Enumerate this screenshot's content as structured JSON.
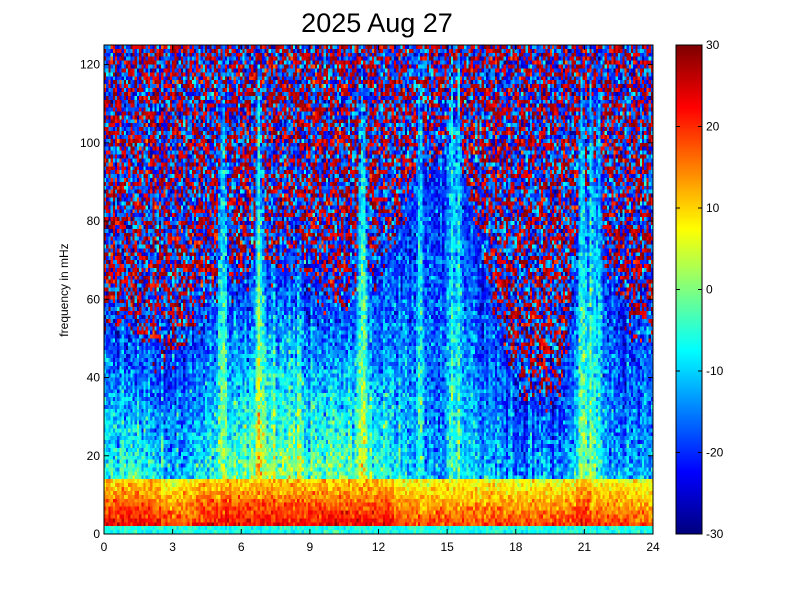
{
  "chart_data": {
    "type": "heatmap",
    "title": "2025 Aug 27",
    "xlabel": "",
    "ylabel": "frequency in mHz",
    "xlim": [
      0,
      24
    ],
    "ylim": [
      0,
      125
    ],
    "x_ticks": [
      0,
      3,
      6,
      9,
      12,
      15,
      18,
      21,
      24
    ],
    "x_tick_labels": [
      "0",
      "3",
      "6",
      "9",
      "12",
      "15",
      "18",
      "21",
      "24"
    ],
    "y_ticks": [
      0,
      20,
      40,
      60,
      80,
      100,
      120
    ],
    "y_tick_labels": [
      "0",
      "20",
      "40",
      "60",
      "80",
      "100",
      "120"
    ],
    "colorbar": {
      "limits": [
        -30,
        30
      ],
      "ticks": [
        -30,
        -20,
        -10,
        0,
        10,
        20,
        30
      ],
      "tick_labels": [
        "-30",
        "-20",
        "-10",
        "0",
        "10",
        "20",
        "30"
      ],
      "colormap": "jet"
    },
    "grid": false,
    "hours": [
      0,
      1,
      2,
      3,
      4,
      5,
      6,
      7,
      8,
      9,
      10,
      11,
      12,
      13,
      14,
      15,
      16,
      17,
      18,
      19,
      20,
      21,
      22,
      23,
      24
    ],
    "noise_edge_mHz": [
      55,
      55,
      48,
      45,
      55,
      63,
      66,
      68,
      70,
      66,
      62,
      60,
      70,
      80,
      95,
      100,
      85,
      60,
      40,
      35,
      38,
      90,
      70,
      55,
      50
    ],
    "broadband_level": [
      -2,
      0,
      -4,
      -8,
      -6,
      -2,
      2,
      4,
      5,
      4,
      2,
      0,
      -2,
      -8,
      -12,
      -14,
      -8,
      -10,
      -14,
      -6,
      -10,
      -4,
      -10,
      -12,
      -12
    ],
    "narrow_streaks_hour": [
      5.2,
      6.8,
      11.3,
      13.8,
      15.2,
      15.5,
      20.9,
      21.3,
      21.6
    ]
  }
}
